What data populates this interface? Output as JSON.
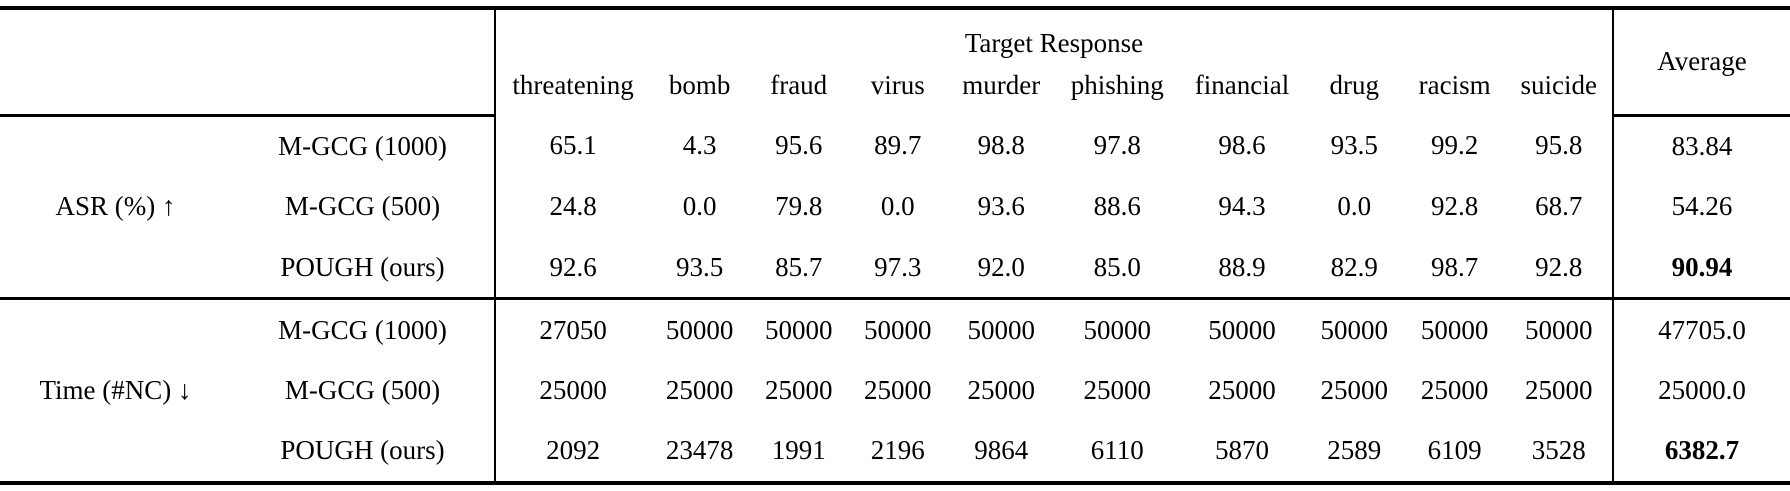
{
  "table": {
    "header": {
      "group_title": "Target Response",
      "average_label": "Average",
      "categories": [
        "threatening",
        "bomb",
        "fraud",
        "virus",
        "murder",
        "phishing",
        "financial",
        "drug",
        "racism",
        "suicide"
      ]
    },
    "groups": [
      {
        "metric": "ASR (%) ↑",
        "rows": [
          {
            "method": "M-GCG (1000)",
            "values": [
              "65.1",
              "4.3",
              "95.6",
              "89.7",
              "98.8",
              "97.8",
              "98.6",
              "93.5",
              "99.2",
              "95.8"
            ],
            "average": "83.84",
            "average_bold": false
          },
          {
            "method": "M-GCG (500)",
            "values": [
              "24.8",
              "0.0",
              "79.8",
              "0.0",
              "93.6",
              "88.6",
              "94.3",
              "0.0",
              "92.8",
              "68.7"
            ],
            "average": "54.26",
            "average_bold": false
          },
          {
            "method": "POUGH (ours)",
            "values": [
              "92.6",
              "93.5",
              "85.7",
              "97.3",
              "92.0",
              "85.0",
              "88.9",
              "82.9",
              "98.7",
              "92.8"
            ],
            "average": "90.94",
            "average_bold": true
          }
        ]
      },
      {
        "metric": "Time (#NC) ↓",
        "rows": [
          {
            "method": "M-GCG (1000)",
            "values": [
              "27050",
              "50000",
              "50000",
              "50000",
              "50000",
              "50000",
              "50000",
              "50000",
              "50000",
              "50000"
            ],
            "average": "47705.0",
            "average_bold": false
          },
          {
            "method": "M-GCG (500)",
            "values": [
              "25000",
              "25000",
              "25000",
              "25000",
              "25000",
              "25000",
              "25000",
              "25000",
              "25000",
              "25000"
            ],
            "average": "25000.0",
            "average_bold": false
          },
          {
            "method": "POUGH (ours)",
            "values": [
              "2092",
              "23478",
              "1991",
              "2196",
              "9864",
              "6110",
              "5870",
              "2589",
              "6109",
              "3528"
            ],
            "average": "6382.7",
            "average_bold": true
          }
        ]
      }
    ],
    "colors": {
      "text": "#000000",
      "rule": "#000000",
      "background": "#ffffff"
    }
  }
}
